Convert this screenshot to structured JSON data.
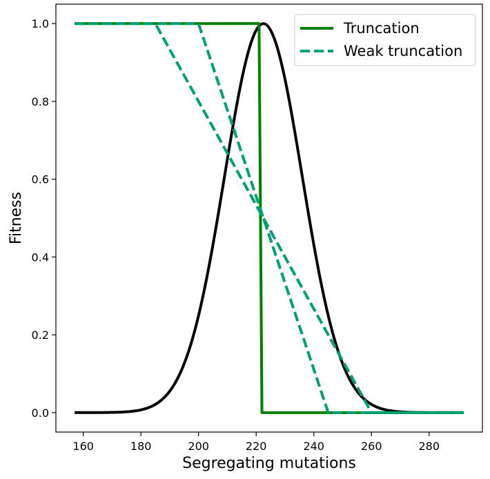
{
  "chart_data": {
    "type": "line",
    "title": "",
    "xlabel": "Segregating mutations",
    "ylabel": "Fitness",
    "xlim": [
      150.5,
      298.5
    ],
    "ylim": [
      -0.05,
      1.05
    ],
    "xticks": [
      160,
      180,
      200,
      220,
      240,
      260,
      280
    ],
    "yticks": [
      0.0,
      0.2,
      0.4,
      0.6,
      0.8,
      1.0
    ],
    "xtick_labels": [
      "160",
      "180",
      "200",
      "220",
      "240",
      "260",
      "280"
    ],
    "ytick_labels": [
      "0.0",
      "0.2",
      "0.4",
      "0.6",
      "0.8",
      "1.0"
    ],
    "grid": false,
    "legend": {
      "position": "top-right",
      "entries": [
        "Truncation",
        "Weak truncation"
      ]
    },
    "colors": {
      "truncation": "#008000",
      "weak_truncation": "#009e73",
      "distribution": "#000000"
    },
    "series": [
      {
        "name": "",
        "style": "solid",
        "color": "#000000",
        "kind": "gaussian",
        "mean": 222.5,
        "sd": 13.5,
        "peak": 1.0,
        "x_range": [
          157,
          292
        ]
      },
      {
        "name": "Truncation",
        "style": "solid",
        "color": "#008000",
        "x": [
          157,
          221,
          222,
          292
        ],
        "y": [
          1.0,
          1.0,
          0.0,
          0.0
        ]
      },
      {
        "name": "Weak truncation",
        "style": "dashed",
        "color": "#009e73",
        "x": [
          157,
          200,
          245,
          292
        ],
        "y": [
          1.0,
          1.0,
          0.0,
          0.0
        ]
      },
      {
        "name": "",
        "style": "dashed",
        "color": "#009e73",
        "x": [
          157,
          185,
          260,
          292
        ],
        "y": [
          1.0,
          1.0,
          0.0,
          0.0
        ]
      }
    ]
  }
}
